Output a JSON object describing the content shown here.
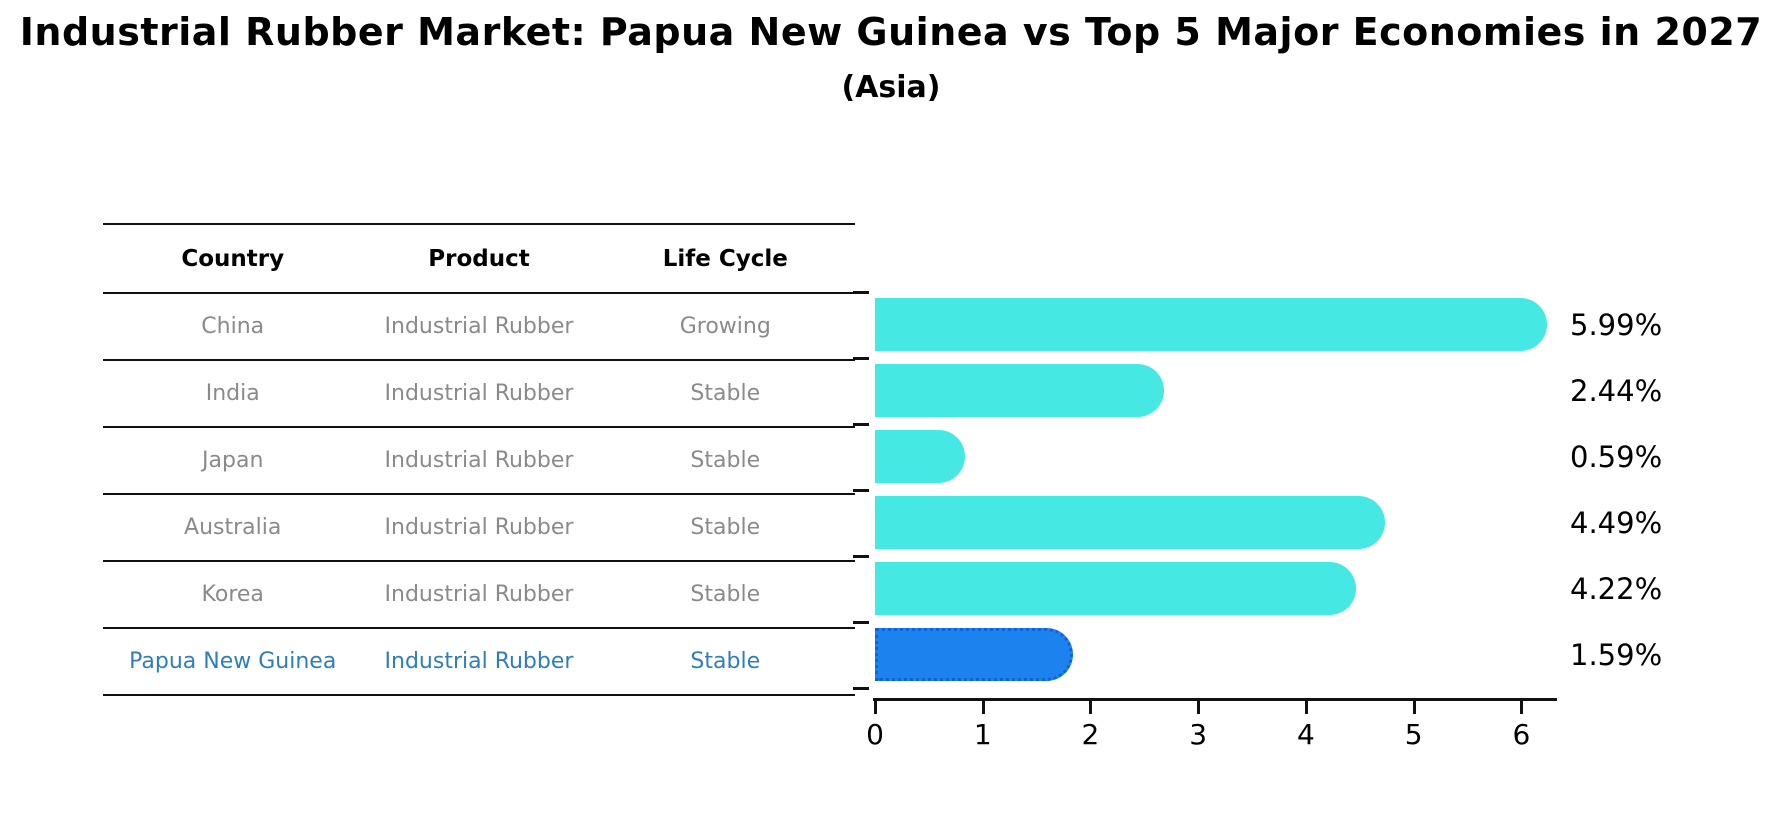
{
  "header": {
    "title": "Industrial Rubber Market: Papua New Guinea vs Top 5 Major Economies in 2027",
    "subtitle": "(Asia)"
  },
  "table": {
    "headers": [
      "Country",
      "Product",
      "Life Cycle"
    ],
    "rows": [
      {
        "country": "China",
        "product": "Industrial Rubber",
        "life_cycle": "Growing",
        "highlight": false
      },
      {
        "country": "India",
        "product": "Industrial Rubber",
        "life_cycle": "Stable",
        "highlight": false
      },
      {
        "country": "Japan",
        "product": "Industrial Rubber",
        "life_cycle": "Stable",
        "highlight": false
      },
      {
        "country": "Australia",
        "product": "Industrial Rubber",
        "life_cycle": "Stable",
        "highlight": false
      },
      {
        "country": "Korea",
        "product": "Industrial Rubber",
        "life_cycle": "Stable",
        "highlight": false
      },
      {
        "country": "Papua New Guinea",
        "product": "Industrial Rubber",
        "life_cycle": "Stable",
        "highlight": true
      }
    ]
  },
  "chart_data": {
    "type": "bar",
    "orientation": "horizontal",
    "title": "Industrial Rubber Market: Papua New Guinea vs Top 5 Major Economies in 2027 (Asia)",
    "categories": [
      "China",
      "India",
      "Japan",
      "Australia",
      "Korea",
      "Papua New Guinea"
    ],
    "values": [
      5.99,
      2.44,
      0.59,
      4.49,
      4.22,
      1.59
    ],
    "value_labels": [
      "5.99%",
      "2.44%",
      "0.59%",
      "4.49%",
      "4.22%",
      "1.59%"
    ],
    "xlabel": "",
    "ylabel": "",
    "xlim": [
      0,
      6.33
    ],
    "xticks": [
      0,
      1,
      2,
      3,
      4,
      5,
      6
    ],
    "grid": false,
    "legend": false,
    "bar_color": "#45e8e2",
    "highlight_color": "#1b82ee",
    "highlight_index": 5,
    "highlight_text_color": "#2e7ebc"
  }
}
